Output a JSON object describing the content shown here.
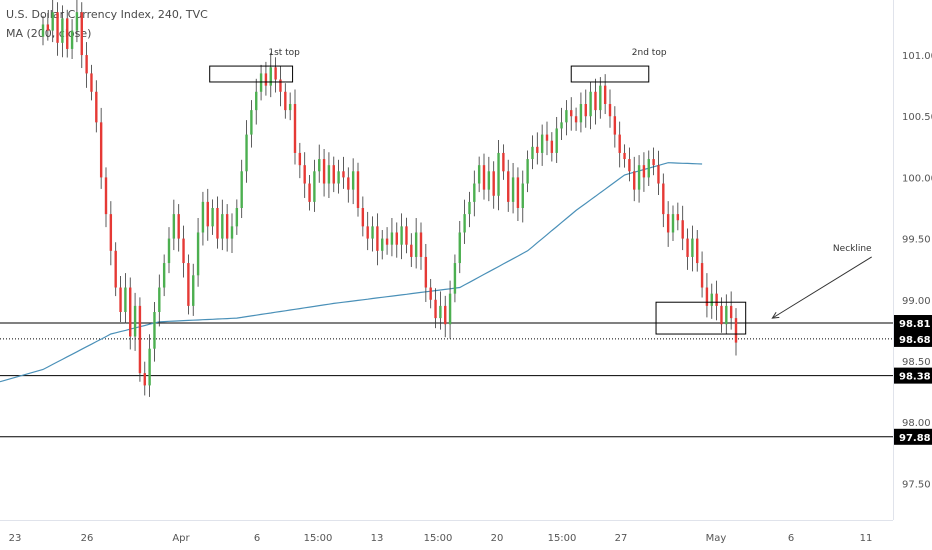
{
  "legend": {
    "symbol_line": "U.S. Dollar Currency Index, 240, TVC",
    "ma_line": "MA (200, close)"
  },
  "chart_data": {
    "type": "candlestick",
    "instrument": "U.S. Dollar Currency Index",
    "interval": "240",
    "source": "TVC",
    "indicator": "MA (200, close)",
    "ylim": [
      97.2,
      101.45
    ],
    "y_ticks": [
      {
        "value": 101.0,
        "label": "101.00"
      },
      {
        "value": 100.5,
        "label": "100.50"
      },
      {
        "value": 100.0,
        "label": "100.00"
      },
      {
        "value": 99.5,
        "label": "99.50"
      },
      {
        "value": 99.0,
        "label": "99.00"
      },
      {
        "value": 98.5,
        "label": "98.50"
      },
      {
        "value": 98.0,
        "label": "98.00"
      },
      {
        "value": 97.5,
        "label": "97.50"
      }
    ],
    "x_ticks": [
      "23",
      "26",
      "Apr",
      "6",
      "15:00",
      "13",
      "15:00",
      "20",
      "15:00",
      "27",
      "May",
      "6",
      "11"
    ],
    "horizontal_levels": [
      {
        "value": 98.81,
        "label": "98.81",
        "style": "solid"
      },
      {
        "value": 98.68,
        "label": "98.68",
        "style": "dotted"
      },
      {
        "value": 98.38,
        "label": "98.38",
        "style": "solid"
      },
      {
        "value": 97.88,
        "label": "97.88",
        "style": "solid"
      }
    ],
    "annotations": [
      {
        "text": "1st top",
        "near": "first peak"
      },
      {
        "text": "2nd top",
        "near": "second peak"
      },
      {
        "text": "Neckline",
        "near": "right side, arrow to neckline box"
      }
    ],
    "colors": {
      "up": "#4caf50",
      "down": "#e53935",
      "ma": "#4a90b8",
      "level": "#000000"
    },
    "closes": [
      101.25,
      101.2,
      101.35,
      101.1,
      101.3,
      101.05,
      101.2,
      101.35,
      101.0,
      100.85,
      100.7,
      100.45,
      100.0,
      99.7,
      99.4,
      99.1,
      98.9,
      99.1,
      98.7,
      98.95,
      98.4,
      98.3,
      98.6,
      98.9,
      99.1,
      99.3,
      99.5,
      99.7,
      99.5,
      99.3,
      98.95,
      99.2,
      99.55,
      99.8,
      99.6,
      99.75,
      99.5,
      99.7,
      99.5,
      99.6,
      99.75,
      100.05,
      100.35,
      100.55,
      100.7,
      100.85,
      100.75,
      100.9,
      100.8,
      100.7,
      100.55,
      100.6,
      100.2,
      100.1,
      99.95,
      99.8,
      100.05,
      100.15,
      99.95,
      100.1,
      99.95,
      100.05,
      100.0,
      99.9,
      100.05,
      99.75,
      99.6,
      99.5,
      99.6,
      99.4,
      99.5,
      99.45,
      99.55,
      99.45,
      99.6,
      99.45,
      99.35,
      99.55,
      99.35,
      99.1,
      99.0,
      98.85,
      98.95,
      98.8,
      99.05,
      99.3,
      99.55,
      99.7,
      99.8,
      99.95,
      100.1,
      99.9,
      100.05,
      99.85,
      100.2,
      100.05,
      99.8,
      100.0,
      99.75,
      99.95,
      100.15,
      100.25,
      100.2,
      100.35,
      100.3,
      100.2,
      100.4,
      100.45,
      100.55,
      100.5,
      100.45,
      100.6,
      100.5,
      100.7,
      100.55,
      100.75,
      100.6,
      100.5,
      100.35,
      100.2,
      100.15,
      100.05,
      99.9,
      100.1,
      100.0,
      100.15,
      100.1,
      99.95,
      99.7,
      99.55,
      99.7,
      99.65,
      99.5,
      99.35,
      99.5,
      99.3,
      99.1,
      98.95,
      99.05,
      98.95,
      98.8,
      98.95,
      98.85,
      98.65
    ],
    "ma_200": [
      {
        "bar": 0,
        "value": 98.43
      },
      {
        "bar": 14,
        "value": 98.72
      },
      {
        "bar": 24,
        "value": 98.82
      },
      {
        "bar": 40,
        "value": 98.85
      },
      {
        "bar": 60,
        "value": 98.97
      },
      {
        "bar": 80,
        "value": 99.07
      },
      {
        "bar": 86,
        "value": 99.1
      },
      {
        "bar": 100,
        "value": 99.4
      },
      {
        "bar": 110,
        "value": 99.73
      },
      {
        "bar": 120,
        "value": 100.02
      },
      {
        "bar": 129,
        "value": 100.12
      },
      {
        "bar": 136,
        "value": 100.11
      }
    ]
  }
}
